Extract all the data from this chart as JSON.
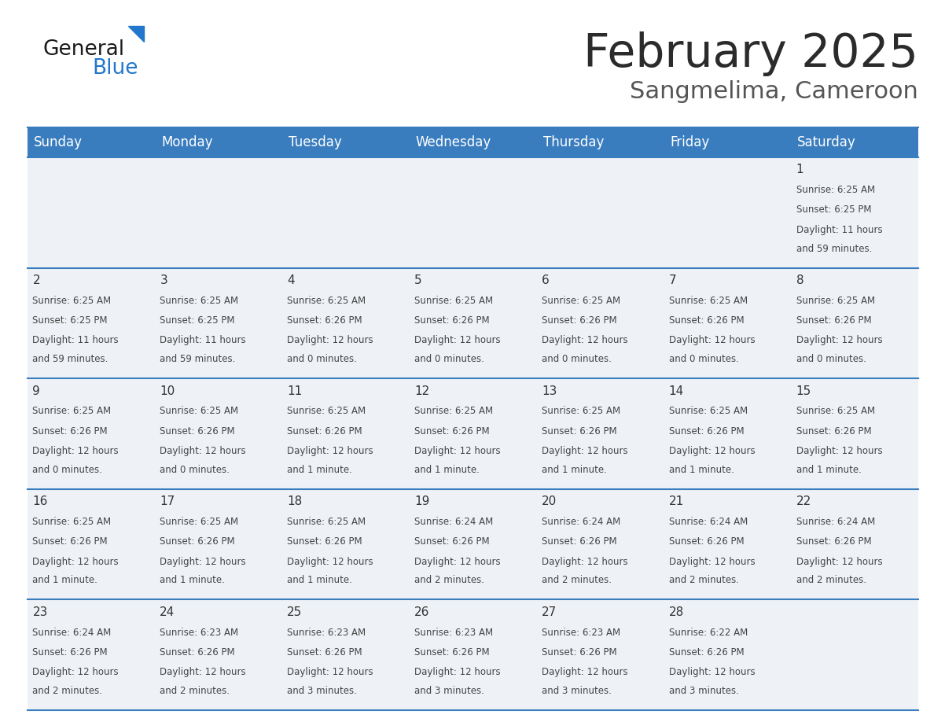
{
  "title": "February 2025",
  "subtitle": "Sangmelima, Cameroon",
  "title_color": "#2b2b2b",
  "subtitle_color": "#555555",
  "header_bg_color": "#3a7dbf",
  "header_text_color": "#ffffff",
  "cell_bg_color": "#eef2f7",
  "cell_border_color": "#3a7dbf",
  "day_number_color": "#333333",
  "day_text_color": "#444444",
  "days_of_week": [
    "Sunday",
    "Monday",
    "Tuesday",
    "Wednesday",
    "Thursday",
    "Friday",
    "Saturday"
  ],
  "calendar": [
    [
      null,
      null,
      null,
      null,
      null,
      null,
      1
    ],
    [
      2,
      3,
      4,
      5,
      6,
      7,
      8
    ],
    [
      9,
      10,
      11,
      12,
      13,
      14,
      15
    ],
    [
      16,
      17,
      18,
      19,
      20,
      21,
      22
    ],
    [
      23,
      24,
      25,
      26,
      27,
      28,
      null
    ]
  ],
  "cell_data": {
    "1": {
      "sunrise": "6:25 AM",
      "sunset": "6:25 PM",
      "daylight_hours": 11,
      "daylight_minutes": 59
    },
    "2": {
      "sunrise": "6:25 AM",
      "sunset": "6:25 PM",
      "daylight_hours": 11,
      "daylight_minutes": 59
    },
    "3": {
      "sunrise": "6:25 AM",
      "sunset": "6:25 PM",
      "daylight_hours": 11,
      "daylight_minutes": 59
    },
    "4": {
      "sunrise": "6:25 AM",
      "sunset": "6:26 PM",
      "daylight_hours": 12,
      "daylight_minutes": 0
    },
    "5": {
      "sunrise": "6:25 AM",
      "sunset": "6:26 PM",
      "daylight_hours": 12,
      "daylight_minutes": 0
    },
    "6": {
      "sunrise": "6:25 AM",
      "sunset": "6:26 PM",
      "daylight_hours": 12,
      "daylight_minutes": 0
    },
    "7": {
      "sunrise": "6:25 AM",
      "sunset": "6:26 PM",
      "daylight_hours": 12,
      "daylight_minutes": 0
    },
    "8": {
      "sunrise": "6:25 AM",
      "sunset": "6:26 PM",
      "daylight_hours": 12,
      "daylight_minutes": 0
    },
    "9": {
      "sunrise": "6:25 AM",
      "sunset": "6:26 PM",
      "daylight_hours": 12,
      "daylight_minutes": 0
    },
    "10": {
      "sunrise": "6:25 AM",
      "sunset": "6:26 PM",
      "daylight_hours": 12,
      "daylight_minutes": 0
    },
    "11": {
      "sunrise": "6:25 AM",
      "sunset": "6:26 PM",
      "daylight_hours": 12,
      "daylight_minutes": 1
    },
    "12": {
      "sunrise": "6:25 AM",
      "sunset": "6:26 PM",
      "daylight_hours": 12,
      "daylight_minutes": 1
    },
    "13": {
      "sunrise": "6:25 AM",
      "sunset": "6:26 PM",
      "daylight_hours": 12,
      "daylight_minutes": 1
    },
    "14": {
      "sunrise": "6:25 AM",
      "sunset": "6:26 PM",
      "daylight_hours": 12,
      "daylight_minutes": 1
    },
    "15": {
      "sunrise": "6:25 AM",
      "sunset": "6:26 PM",
      "daylight_hours": 12,
      "daylight_minutes": 1
    },
    "16": {
      "sunrise": "6:25 AM",
      "sunset": "6:26 PM",
      "daylight_hours": 12,
      "daylight_minutes": 1
    },
    "17": {
      "sunrise": "6:25 AM",
      "sunset": "6:26 PM",
      "daylight_hours": 12,
      "daylight_minutes": 1
    },
    "18": {
      "sunrise": "6:25 AM",
      "sunset": "6:26 PM",
      "daylight_hours": 12,
      "daylight_minutes": 1
    },
    "19": {
      "sunrise": "6:24 AM",
      "sunset": "6:26 PM",
      "daylight_hours": 12,
      "daylight_minutes": 2
    },
    "20": {
      "sunrise": "6:24 AM",
      "sunset": "6:26 PM",
      "daylight_hours": 12,
      "daylight_minutes": 2
    },
    "21": {
      "sunrise": "6:24 AM",
      "sunset": "6:26 PM",
      "daylight_hours": 12,
      "daylight_minutes": 2
    },
    "22": {
      "sunrise": "6:24 AM",
      "sunset": "6:26 PM",
      "daylight_hours": 12,
      "daylight_minutes": 2
    },
    "23": {
      "sunrise": "6:24 AM",
      "sunset": "6:26 PM",
      "daylight_hours": 12,
      "daylight_minutes": 2
    },
    "24": {
      "sunrise": "6:23 AM",
      "sunset": "6:26 PM",
      "daylight_hours": 12,
      "daylight_minutes": 2
    },
    "25": {
      "sunrise": "6:23 AM",
      "sunset": "6:26 PM",
      "daylight_hours": 12,
      "daylight_minutes": 3
    },
    "26": {
      "sunrise": "6:23 AM",
      "sunset": "6:26 PM",
      "daylight_hours": 12,
      "daylight_minutes": 3
    },
    "27": {
      "sunrise": "6:23 AM",
      "sunset": "6:26 PM",
      "daylight_hours": 12,
      "daylight_minutes": 3
    },
    "28": {
      "sunrise": "6:22 AM",
      "sunset": "6:26 PM",
      "daylight_hours": 12,
      "daylight_minutes": 3
    }
  },
  "logo_general_color": "#1a1a1a",
  "logo_blue_color": "#2277cc",
  "logo_triangle_color": "#2277cc"
}
